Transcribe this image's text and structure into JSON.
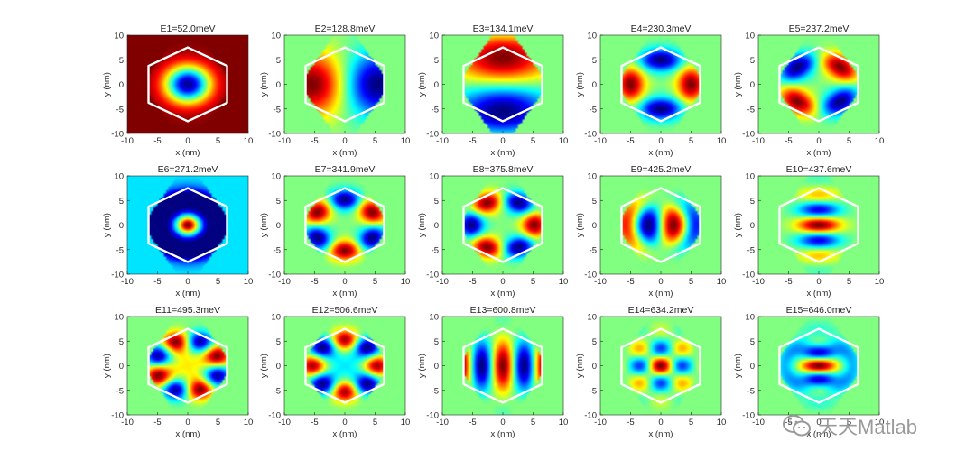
{
  "figure": {
    "x_label": "x (nm)",
    "y_label": "y (nm)",
    "x_ticks": [
      "-10",
      "-5",
      "0",
      "5",
      "10"
    ],
    "y_ticks": [
      "10",
      "5",
      "0",
      "-5",
      "-10"
    ],
    "boundary_color": "#ffffff",
    "colormap": "jet"
  },
  "watermark": {
    "text": "天天Matlab",
    "icon": "wechat-icon"
  },
  "chart_data": {
    "type": "heatmap",
    "layout": "3x5 subplot grid",
    "xlim": [
      -10,
      10
    ],
    "ylim": [
      -10,
      10
    ],
    "xlabel": "x (nm)",
    "ylabel": "y (nm)",
    "grid": false,
    "panels": [
      {
        "title": "E1=52.0meV",
        "state": 1,
        "energy_meV": 52.0
      },
      {
        "title": "E2=128.8meV",
        "state": 2,
        "energy_meV": 128.8
      },
      {
        "title": "E3=134.1meV",
        "state": 3,
        "energy_meV": 134.1
      },
      {
        "title": "E4=230.3meV",
        "state": 4,
        "energy_meV": 230.3
      },
      {
        "title": "E5=237.2meV",
        "state": 5,
        "energy_meV": 237.2
      },
      {
        "title": "E6=271.2meV",
        "state": 6,
        "energy_meV": 271.2
      },
      {
        "title": "E7=341.9meV",
        "state": 7,
        "energy_meV": 341.9
      },
      {
        "title": "E8=375.8meV",
        "state": 8,
        "energy_meV": 375.8
      },
      {
        "title": "E9=425.2meV",
        "state": 9,
        "energy_meV": 425.2
      },
      {
        "title": "E10=437.6meV",
        "state": 10,
        "energy_meV": 437.6
      },
      {
        "title": "E11=495.3meV",
        "state": 11,
        "energy_meV": 495.3
      },
      {
        "title": "E12=506.6meV",
        "state": 12,
        "energy_meV": 506.6
      },
      {
        "title": "E13=600.8meV",
        "state": 13,
        "energy_meV": 600.8
      },
      {
        "title": "E14=634.2meV",
        "state": 14,
        "energy_meV": 634.2
      },
      {
        "title": "E15=646.0meV",
        "state": 15,
        "energy_meV": 646.0
      }
    ]
  }
}
